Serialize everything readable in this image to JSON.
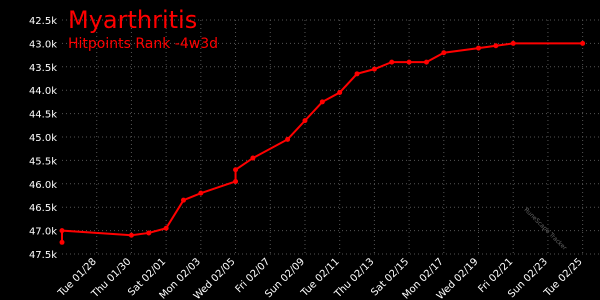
{
  "chart_data": {
    "type": "line",
    "title": "Myarthritis",
    "subtitle": "Hitpoints Rank -4w3d",
    "watermark": "RuneScape Tracker",
    "x": [
      "01/26",
      "01/26",
      "01/30",
      "01/31",
      "02/01",
      "02/02",
      "02/03",
      "02/05",
      "02/05",
      "02/06",
      "02/08",
      "02/09",
      "02/10",
      "02/11",
      "02/12",
      "02/13",
      "02/14",
      "02/15",
      "02/16",
      "02/17",
      "02/19",
      "02/20",
      "02/21",
      "02/25"
    ],
    "series": [
      {
        "name": "Hitpoints Rank",
        "color": "#ff0000",
        "values": [
          47250,
          47000,
          47100,
          47050,
          46950,
          46350,
          46200,
          45950,
          45700,
          45450,
          45050,
          44650,
          44250,
          44050,
          43650,
          43550,
          43400,
          43400,
          43400,
          43200,
          43100,
          43050,
          43000,
          43000
        ]
      }
    ],
    "xlim": [
      "01/26",
      "02/26"
    ],
    "xticks": [
      {
        "value": "01/28",
        "label": "Tue 01/28"
      },
      {
        "value": "01/30",
        "label": "Thu 01/30"
      },
      {
        "value": "02/01",
        "label": "Sat 02/01"
      },
      {
        "value": "02/03",
        "label": "Mon 02/03"
      },
      {
        "value": "02/05",
        "label": "Wed 02/05"
      },
      {
        "value": "02/07",
        "label": "Fri 02/07"
      },
      {
        "value": "02/09",
        "label": "Sun 02/09"
      },
      {
        "value": "02/11",
        "label": "Tue 02/11"
      },
      {
        "value": "02/13",
        "label": "Thu 02/13"
      },
      {
        "value": "02/15",
        "label": "Sat 02/15"
      },
      {
        "value": "02/17",
        "label": "Mon 02/17"
      },
      {
        "value": "02/19",
        "label": "Wed 02/19"
      },
      {
        "value": "02/21",
        "label": "Fri 02/21"
      },
      {
        "value": "02/23",
        "label": "Sun 02/23"
      },
      {
        "value": "02/25",
        "label": "Tue 02/25"
      }
    ],
    "ylim": [
      42500,
      47500
    ],
    "y_inverted": true,
    "yticks": [
      {
        "value": 42500,
        "label": "42.5k"
      },
      {
        "value": 43000,
        "label": "43.0k"
      },
      {
        "value": 43500,
        "label": "43.5k"
      },
      {
        "value": 44000,
        "label": "44.0k"
      },
      {
        "value": 44500,
        "label": "44.5k"
      },
      {
        "value": 45000,
        "label": "45.0k"
      },
      {
        "value": 45500,
        "label": "45.5k"
      },
      {
        "value": 46000,
        "label": "46.0k"
      },
      {
        "value": 46500,
        "label": "46.5k"
      },
      {
        "value": 47000,
        "label": "47.0k"
      },
      {
        "value": 47500,
        "label": "47.5k"
      }
    ],
    "grid": true
  }
}
